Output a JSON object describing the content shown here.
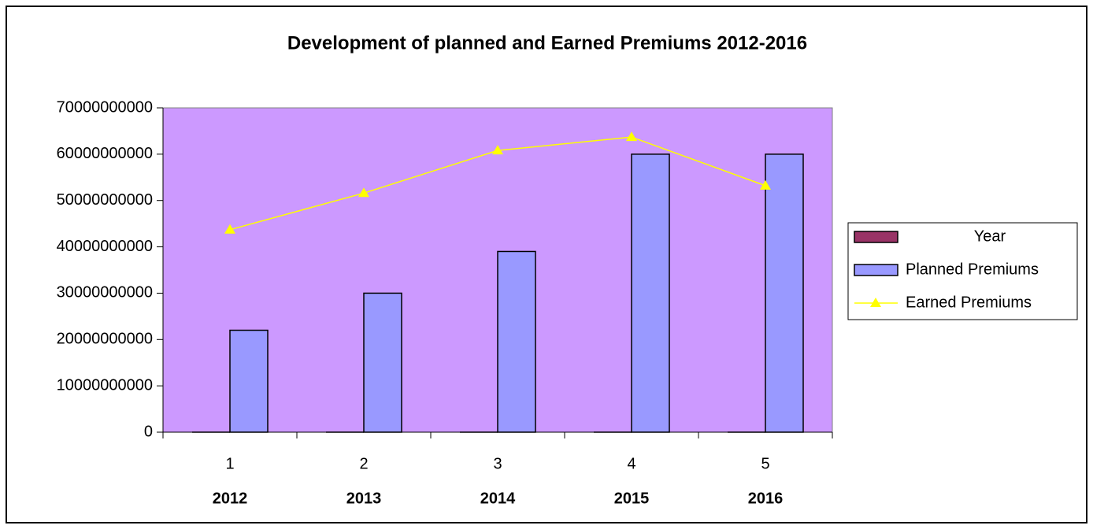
{
  "chart_data": {
    "type": "bar",
    "title": "Development of planned and Earned Premiums 2012-2016",
    "categories": [
      "1",
      "2",
      "3",
      "4",
      "5"
    ],
    "category_groups": [
      "2012",
      "2013",
      "2014",
      "2015",
      "2016"
    ],
    "series": [
      {
        "name": "Year",
        "type": "bar",
        "color": "#993366",
        "values": [
          2012,
          2013,
          2014,
          2015,
          2016
        ]
      },
      {
        "name": "Planned Premiums",
        "type": "bar",
        "color": "#9999ff",
        "values": [
          22000000000,
          30000000000,
          39000000000,
          60000000000,
          60000000000
        ]
      },
      {
        "name": "Earned Premiums",
        "type": "line",
        "color": "#ffff00",
        "values": [
          43700000000,
          51600000000,
          60800000000,
          63700000000,
          53200000000
        ]
      }
    ],
    "ylim": [
      0,
      70000000000
    ],
    "yticks": [
      0,
      10000000000,
      20000000000,
      30000000000,
      40000000000,
      50000000000,
      60000000000,
      70000000000
    ],
    "plot_background": "#cc99ff",
    "legend": "right"
  }
}
